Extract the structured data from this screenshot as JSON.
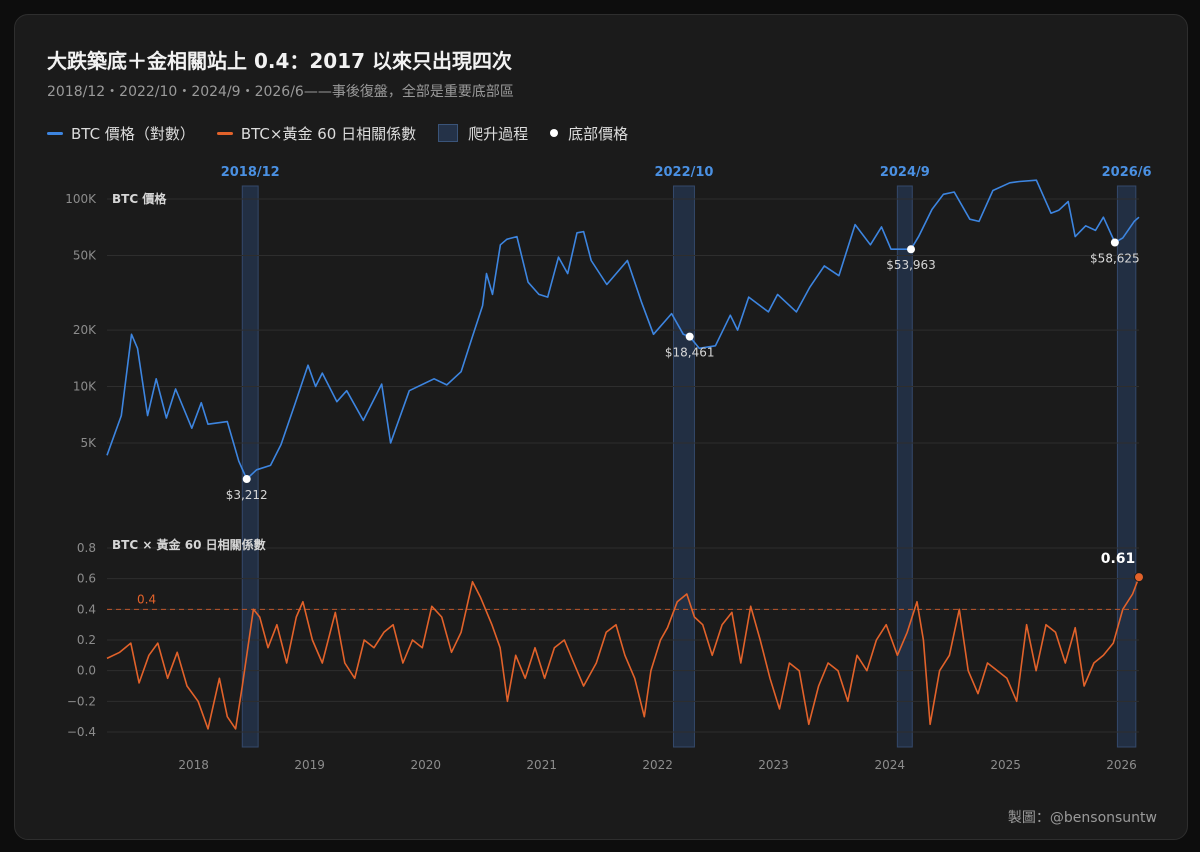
{
  "title": "大跌築底＋金相關站上 0.4：2017 以來只出現四次",
  "subtitle": "2018/12・2022/10・2024/9・2026/6——事後復盤，全部是重要底部區",
  "legend": [
    {
      "label": "BTC 價格（對數）",
      "kind": "line",
      "color": "#3d85e0"
    },
    {
      "label": "BTC×黃金 60 日相關係數",
      "kind": "line",
      "color": "#e2622a"
    },
    {
      "label": "爬升過程",
      "kind": "box",
      "color": "#243248"
    },
    {
      "label": "底部價格",
      "kind": "dot",
      "color": "#ffffff"
    }
  ],
  "credit": "製圖：@bensonsuntw",
  "colors": {
    "btc": "#3d85e0",
    "corr": "#e2622a",
    "band": "#23324a",
    "band_label": "#4a90e2"
  },
  "chart_data": [
    {
      "type": "line",
      "panel_label": "BTC 價格",
      "scale": "log",
      "yticks": [
        5000,
        10000,
        20000,
        50000,
        100000
      ],
      "ytick_labels": [
        "5K",
        "10K",
        "20K",
        "50K",
        "100K"
      ],
      "xticks": [
        "2018",
        "2019",
        "2020",
        "2021",
        "2022",
        "2023",
        "2024",
        "2025",
        "2026"
      ],
      "series": [
        {
          "name": "BTC 價格（對數）",
          "points": [
            [
              "2017-10-01",
              4300
            ],
            [
              "2017-11-15",
              7000
            ],
            [
              "2017-12-17",
              19000
            ],
            [
              "2018-01-05",
              16000
            ],
            [
              "2018-02-06",
              7000
            ],
            [
              "2018-03-05",
              11000
            ],
            [
              "2018-04-06",
              6800
            ],
            [
              "2018-05-05",
              9700
            ],
            [
              "2018-06-25",
              6000
            ],
            [
              "2018-07-25",
              8200
            ],
            [
              "2018-08-15",
              6300
            ],
            [
              "2018-10-15",
              6500
            ],
            [
              "2018-11-20",
              4000
            ],
            [
              "2018-12-15",
              3212
            ],
            [
              "2019-01-15",
              3600
            ],
            [
              "2019-02-28",
              3800
            ],
            [
              "2019-04-02",
              4900
            ],
            [
              "2019-05-15",
              8000
            ],
            [
              "2019-06-26",
              13000
            ],
            [
              "2019-07-20",
              10000
            ],
            [
              "2019-08-10",
              11800
            ],
            [
              "2019-09-25",
              8300
            ],
            [
              "2019-10-26",
              9500
            ],
            [
              "2019-12-17",
              6600
            ],
            [
              "2020-02-13",
              10300
            ],
            [
              "2020-03-12",
              5000
            ],
            [
              "2020-05-10",
              9500
            ],
            [
              "2020-07-27",
              11000
            ],
            [
              "2020-09-05",
              10200
            ],
            [
              "2020-10-20",
              12000
            ],
            [
              "2020-11-25",
              18500
            ],
            [
              "2020-12-27",
              27000
            ],
            [
              "2021-01-08",
              40000
            ],
            [
              "2021-01-27",
              31000
            ],
            [
              "2021-02-21",
              57000
            ],
            [
              "2021-03-13",
              61000
            ],
            [
              "2021-04-14",
              63000
            ],
            [
              "2021-05-19",
              36000
            ],
            [
              "2021-06-22",
              31000
            ],
            [
              "2021-07-20",
              30000
            ],
            [
              "2021-08-23",
              49000
            ],
            [
              "2021-09-21",
              40000
            ],
            [
              "2021-10-20",
              66000
            ],
            [
              "2021-11-10",
              67000
            ],
            [
              "2021-12-04",
              47000
            ],
            [
              "2022-01-22",
              35000
            ],
            [
              "2022-03-28",
              47000
            ],
            [
              "2022-05-12",
              28000
            ],
            [
              "2022-06-18",
              19000
            ],
            [
              "2022-08-14",
              24500
            ],
            [
              "2022-09-20",
              19000
            ],
            [
              "2022-10-10",
              18461
            ],
            [
              "2022-11-09",
              16000
            ],
            [
              "2022-12-30",
              16500
            ],
            [
              "2023-02-15",
              24000
            ],
            [
              "2023-03-10",
              20000
            ],
            [
              "2023-04-14",
              30000
            ],
            [
              "2023-06-15",
              25000
            ],
            [
              "2023-07-14",
              31000
            ],
            [
              "2023-09-11",
              25000
            ],
            [
              "2023-10-24",
              34000
            ],
            [
              "2023-12-08",
              44000
            ],
            [
              "2024-01-23",
              39000
            ],
            [
              "2024-03-14",
              73000
            ],
            [
              "2024-05-01",
              57000
            ],
            [
              "2024-06-05",
              71000
            ],
            [
              "2024-07-05",
              54000
            ],
            [
              "2024-08-05",
              53963
            ],
            [
              "2024-09-06",
              53963
            ],
            [
              "2024-09-30",
              63000
            ],
            [
              "2024-11-11",
              88000
            ],
            [
              "2024-12-17",
              106000
            ],
            [
              "2025-01-20",
              109000
            ],
            [
              "2025-03-10",
              78000
            ],
            [
              "2025-04-08",
              76000
            ],
            [
              "2025-05-22",
              111000
            ],
            [
              "2025-07-14",
              122000
            ],
            [
              "2025-08-14",
              124000
            ],
            [
              "2025-10-06",
              126000
            ],
            [
              "2025-11-21",
              84000
            ],
            [
              "2025-12-15",
              87000
            ],
            [
              "2026-01-14",
              97000
            ],
            [
              "2026-02-05",
              63000
            ],
            [
              "2026-03-10",
              72000
            ],
            [
              "2026-04-10",
              68000
            ],
            [
              "2026-05-05",
              80000
            ],
            [
              "2026-06-10",
              58625
            ],
            [
              "2026-07-05",
              62000
            ],
            [
              "2026-08-10",
              76000
            ],
            [
              "2026-08-25",
              80000
            ]
          ]
        }
      ],
      "annotations": [
        {
          "date": "2018-12-15",
          "value": 3212,
          "label": "$3,212"
        },
        {
          "date": "2022-10-10",
          "value": 18461,
          "label": "$18,461"
        },
        {
          "date": "2024-09-06",
          "value": 53963,
          "label": "$53,963"
        },
        {
          "date": "2026-06-10",
          "value": 58625,
          "label": "$58,625"
        }
      ],
      "bands": [
        {
          "label": "2018/12",
          "start": "2018-12-01",
          "end": "2019-01-20"
        },
        {
          "label": "2022/10",
          "start": "2022-08-20",
          "end": "2022-10-25"
        },
        {
          "label": "2024/9",
          "start": "2024-07-25",
          "end": "2024-09-10"
        },
        {
          "label": "2026/6",
          "start": "2026-06-18",
          "end": "2026-08-15"
        }
      ]
    },
    {
      "type": "line",
      "panel_label": "BTC × 黃金 60 日相關係數",
      "ylim": [
        -0.4,
        0.8
      ],
      "yticks": [
        -0.4,
        -0.2,
        0.0,
        0.2,
        0.4,
        0.6,
        0.8
      ],
      "ytick_labels": [
        "−0.4",
        "−0.2",
        "0.0",
        "0.2",
        "0.4",
        "0.6",
        "0.8"
      ],
      "threshold": {
        "value": 0.4,
        "label": "0.4"
      },
      "end_label": "0.61",
      "series": [
        {
          "name": "BTC×黃金 60 日相關係數",
          "points": [
            [
              "2017-10-01",
              0.08
            ],
            [
              "2017-11-10",
              0.12
            ],
            [
              "2017-12-15",
              0.18
            ],
            [
              "2018-01-10",
              -0.08
            ],
            [
              "2018-02-10",
              0.1
            ],
            [
              "2018-03-10",
              0.18
            ],
            [
              "2018-04-10",
              -0.05
            ],
            [
              "2018-05-10",
              0.12
            ],
            [
              "2018-06-10",
              -0.1
            ],
            [
              "2018-07-15",
              -0.2
            ],
            [
              "2018-08-15",
              -0.38
            ],
            [
              "2018-09-20",
              -0.05
            ],
            [
              "2018-10-15",
              -0.3
            ],
            [
              "2018-11-10",
              -0.38
            ],
            [
              "2018-12-01",
              -0.1
            ],
            [
              "2019-01-05",
              0.4
            ],
            [
              "2019-01-25",
              0.35
            ],
            [
              "2019-02-20",
              0.15
            ],
            [
              "2019-03-20",
              0.3
            ],
            [
              "2019-04-20",
              0.05
            ],
            [
              "2019-05-20",
              0.35
            ],
            [
              "2019-06-10",
              0.45
            ],
            [
              "2019-07-10",
              0.2
            ],
            [
              "2019-08-10",
              0.05
            ],
            [
              "2019-09-20",
              0.38
            ],
            [
              "2019-10-20",
              0.05
            ],
            [
              "2019-11-20",
              -0.05
            ],
            [
              "2019-12-20",
              0.2
            ],
            [
              "2020-01-20",
              0.15
            ],
            [
              "2020-02-20",
              0.25
            ],
            [
              "2020-03-20",
              0.3
            ],
            [
              "2020-04-20",
              0.05
            ],
            [
              "2020-05-20",
              0.2
            ],
            [
              "2020-06-20",
              0.15
            ],
            [
              "2020-07-20",
              0.42
            ],
            [
              "2020-08-20",
              0.35
            ],
            [
              "2020-09-20",
              0.12
            ],
            [
              "2020-10-20",
              0.25
            ],
            [
              "2020-11-25",
              0.58
            ],
            [
              "2020-12-20",
              0.48
            ],
            [
              "2021-01-25",
              0.3
            ],
            [
              "2021-02-20",
              0.15
            ],
            [
              "2021-03-15",
              -0.2
            ],
            [
              "2021-04-10",
              0.1
            ],
            [
              "2021-05-10",
              -0.05
            ],
            [
              "2021-06-10",
              0.15
            ],
            [
              "2021-07-10",
              -0.05
            ],
            [
              "2021-08-10",
              0.15
            ],
            [
              "2021-09-10",
              0.2
            ],
            [
              "2021-10-10",
              0.05
            ],
            [
              "2021-11-10",
              -0.1
            ],
            [
              "2021-12-20",
              0.05
            ],
            [
              "2022-01-20",
              0.25
            ],
            [
              "2022-02-20",
              0.3
            ],
            [
              "2022-03-20",
              0.1
            ],
            [
              "2022-04-20",
              -0.05
            ],
            [
              "2022-05-20",
              -0.3
            ],
            [
              "2022-06-10",
              0.0
            ],
            [
              "2022-07-10",
              0.2
            ],
            [
              "2022-08-01",
              0.28
            ],
            [
              "2022-09-01",
              0.45
            ],
            [
              "2022-10-01",
              0.5
            ],
            [
              "2022-10-25",
              0.35
            ],
            [
              "2022-11-20",
              0.3
            ],
            [
              "2022-12-20",
              0.1
            ],
            [
              "2023-01-20",
              0.3
            ],
            [
              "2023-02-20",
              0.38
            ],
            [
              "2023-03-20",
              0.05
            ],
            [
              "2023-04-20",
              0.42
            ],
            [
              "2023-05-20",
              0.2
            ],
            [
              "2023-06-20",
              -0.05
            ],
            [
              "2023-07-20",
              -0.25
            ],
            [
              "2023-08-20",
              0.05
            ],
            [
              "2023-09-20",
              0.0
            ],
            [
              "2023-10-20",
              -0.35
            ],
            [
              "2023-11-20",
              -0.1
            ],
            [
              "2023-12-20",
              0.05
            ],
            [
              "2024-01-20",
              0.0
            ],
            [
              "2024-02-20",
              -0.2
            ],
            [
              "2024-03-20",
              0.1
            ],
            [
              "2024-04-20",
              0.0
            ],
            [
              "2024-05-20",
              0.2
            ],
            [
              "2024-06-20",
              0.3
            ],
            [
              "2024-07-25",
              0.1
            ],
            [
              "2024-08-25",
              0.25
            ],
            [
              "2024-09-25",
              0.45
            ],
            [
              "2024-10-15",
              0.2
            ],
            [
              "2024-11-05",
              -0.35
            ],
            [
              "2024-12-05",
              0.0
            ],
            [
              "2025-01-05",
              0.1
            ],
            [
              "2025-02-05",
              0.4
            ],
            [
              "2025-03-05",
              0.0
            ],
            [
              "2025-04-05",
              -0.15
            ],
            [
              "2025-05-05",
              0.05
            ],
            [
              "2025-06-05",
              0.0
            ],
            [
              "2025-07-05",
              -0.05
            ],
            [
              "2025-08-05",
              -0.2
            ],
            [
              "2025-09-05",
              0.3
            ],
            [
              "2025-10-05",
              0.0
            ],
            [
              "2025-11-05",
              0.3
            ],
            [
              "2025-12-05",
              0.25
            ],
            [
              "2026-01-05",
              0.05
            ],
            [
              "2026-02-05",
              0.28
            ],
            [
              "2026-03-05",
              -0.1
            ],
            [
              "2026-04-05",
              0.05
            ],
            [
              "2026-05-05",
              0.1
            ],
            [
              "2026-06-05",
              0.18
            ],
            [
              "2026-07-05",
              0.4
            ],
            [
              "2026-08-05",
              0.5
            ],
            [
              "2026-08-25",
              0.61
            ]
          ]
        }
      ]
    }
  ]
}
